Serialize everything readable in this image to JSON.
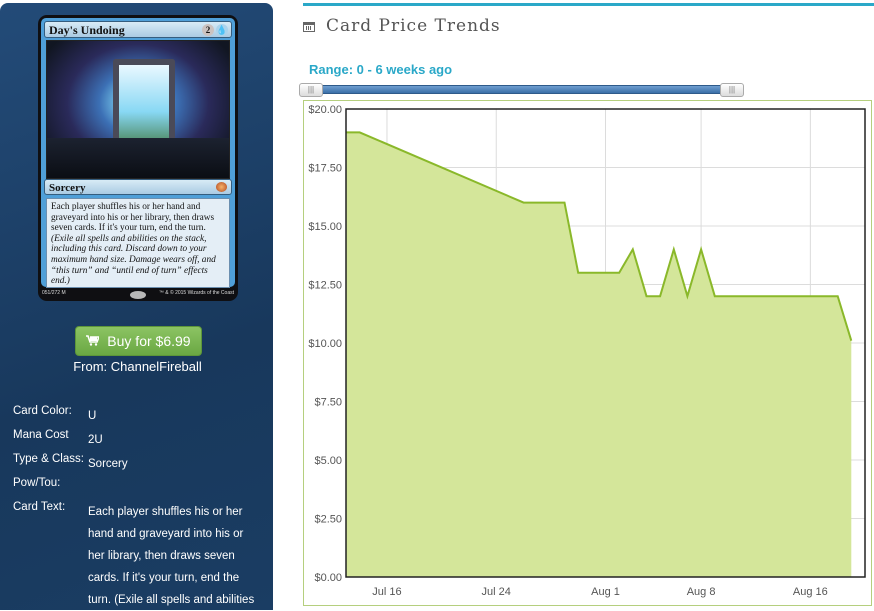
{
  "card": {
    "name": "Day's Undoing",
    "mana_symbols": [
      "2",
      "U"
    ],
    "type_line": "Sorcery",
    "rules_text": "Each player shuffles his or her hand and graveyard into his or her library, then draws seven cards. If it's your turn, end the turn.",
    "reminder_text": "(Exile all spells and abilities on the stack, including this card. Discard down to your maximum hand size. Damage wears off, and “this turn” and “until end of turn” effects end.)",
    "collector_number": "051/272 M",
    "copyright": "™ & © 2015 Wizards of the Coast"
  },
  "purchase": {
    "button_label": "Buy for $6.99",
    "from_label": "From: ChannelFireball",
    "cart_icon": "cart-icon"
  },
  "details": {
    "card_color_label": "Card Color:",
    "card_color": "U",
    "mana_cost_label": "Mana Cost",
    "mana_cost": "2U",
    "type_label": "Type & Class:",
    "type": "Sorcery",
    "pow_label": "Pow/Tou:",
    "pow": "",
    "text_label": "Card Text:",
    "text": "Each player shuffles his or her hand and graveyard into his or her library, then draws seven cards. If it's your turn, end the turn. (Exile all spells and abilities"
  },
  "trends": {
    "title": "Card Price Trends",
    "range_label": "Range: 0 - 6 weeks ago",
    "handle_glyph": "|||",
    "title_icon": "calendar-icon"
  },
  "colors": {
    "accent": "#2aa8c8",
    "line": "#8ab82a",
    "fill": "#d4e69a",
    "button": "#77b04d",
    "panel": "#1b3f66"
  },
  "chart_data": {
    "type": "area",
    "ylim": [
      0,
      20
    ],
    "y_ticks": [
      "$0.00",
      "$2.50",
      "$5.00",
      "$7.50",
      "$10.00",
      "$12.50",
      "$15.00",
      "$17.50",
      "$20.00"
    ],
    "y_tick_values": [
      0,
      2.5,
      5,
      7.5,
      10,
      12.5,
      15,
      17.5,
      20
    ],
    "x_range": [
      "2015-07-13",
      "2015-08-20"
    ],
    "x_ticks": [
      {
        "date": "2015-07-16",
        "label": "Jul 16"
      },
      {
        "date": "2015-07-24",
        "label": "Jul 24"
      },
      {
        "date": "2015-08-01",
        "label": "Aug 1"
      },
      {
        "date": "2015-08-08",
        "label": "Aug 8"
      },
      {
        "date": "2015-08-16",
        "label": "Aug 16"
      }
    ],
    "grid": true,
    "x": [
      "2015-07-13",
      "2015-07-14",
      "2015-07-26",
      "2015-07-29",
      "2015-07-30",
      "2015-08-02",
      "2015-08-03",
      "2015-08-04",
      "2015-08-05",
      "2015-08-06",
      "2015-08-07",
      "2015-08-08",
      "2015-08-09",
      "2015-08-18",
      "2015-08-19"
    ],
    "values": [
      19.0,
      19.0,
      16.0,
      16.0,
      13.0,
      13.0,
      14.0,
      12.0,
      12.0,
      14.0,
      12.0,
      14.0,
      12.0,
      12.0,
      10.1
    ]
  }
}
